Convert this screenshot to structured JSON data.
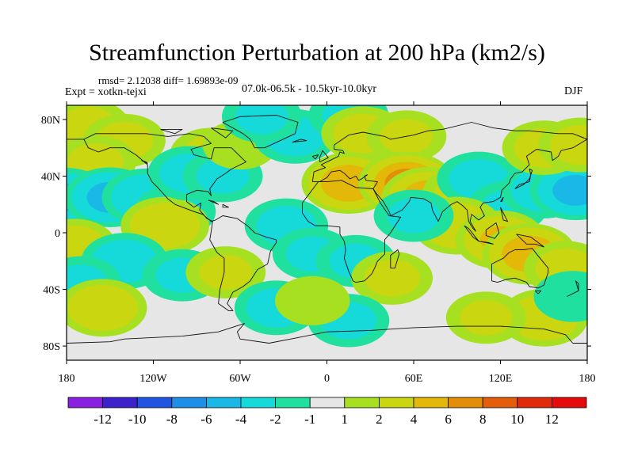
{
  "header": {
    "title": "Streamfunction Perturbation at 200 hPa (km2/s)",
    "stats": "rmsd= 2.12038 diff= 1.69893e-09",
    "expt": "Expt = xotkn-tejxi",
    "period": "07.0k-06.5k - 10.5kyr-10.0kyr",
    "season": "DJF"
  },
  "chart_data": {
    "type": "heatmap",
    "title": "Streamfunction Perturbation at 200 hPa (km2/s)",
    "units": "km2/s",
    "projection": "cylindrical equidistant",
    "xlim": [
      -180,
      180
    ],
    "ylim": [
      -90,
      90
    ],
    "x_ticks": [
      {
        "value": -180,
        "label": "180"
      },
      {
        "value": -120,
        "label": "120W"
      },
      {
        "value": -60,
        "label": "60W"
      },
      {
        "value": 0,
        "label": "0"
      },
      {
        "value": 60,
        "label": "60E"
      },
      {
        "value": 120,
        "label": "120E"
      },
      {
        "value": 180,
        "label": "180"
      }
    ],
    "y_ticks": [
      {
        "value": 80,
        "label": "80N"
      },
      {
        "value": 40,
        "label": "40N"
      },
      {
        "value": 0,
        "label": "0"
      },
      {
        "value": -40,
        "label": "40S"
      },
      {
        "value": -80,
        "label": "80S"
      }
    ],
    "colorbar": {
      "labels": [
        "-12",
        "-10",
        "-8",
        "-6",
        "-4",
        "-2",
        "-1",
        "1",
        "2",
        "4",
        "6",
        "8",
        "10",
        "12"
      ],
      "colors": [
        "#8a1fe0",
        "#3d22cc",
        "#1f55e0",
        "#1f8ee6",
        "#19b8e6",
        "#16d9d9",
        "#20e0a0",
        "#e6e6e6",
        "#a6e020",
        "#c9d610",
        "#e3b808",
        "#e38e08",
        "#e35d0a",
        "#e02a0a",
        "#e60a0a"
      ]
    },
    "field": [
      {
        "lon": -165,
        "lat": 75,
        "value": 2.5
      },
      {
        "lon": -140,
        "lat": 65,
        "value": 2.3
      },
      {
        "lon": -160,
        "lat": 50,
        "value": 2.2
      },
      {
        "lon": -180,
        "lat": 25,
        "value": -4
      },
      {
        "lon": -150,
        "lat": 25,
        "value": -4.5
      },
      {
        "lon": -125,
        "lat": 25,
        "value": -3.5
      },
      {
        "lon": -105,
        "lat": 15,
        "value": -2.2
      },
      {
        "lon": -80,
        "lat": 55,
        "value": 2.4
      },
      {
        "lon": -112,
        "lat": 5,
        "value": 3.5
      },
      {
        "lon": -95,
        "lat": 42,
        "value": -2.5
      },
      {
        "lon": -72,
        "lat": 40,
        "value": -2
      },
      {
        "lon": -60,
        "lat": 62,
        "value": 1.5
      },
      {
        "lon": -22,
        "lat": 68,
        "value": -2.5
      },
      {
        "lon": -45,
        "lat": 82,
        "value": -2
      },
      {
        "lon": 15,
        "lat": 83,
        "value": -2
      },
      {
        "lon": 25,
        "lat": 70,
        "value": 2.5
      },
      {
        "lon": 55,
        "lat": 68,
        "value": 2
      },
      {
        "lon": 15,
        "lat": 35,
        "value": 5.5
      },
      {
        "lon": 55,
        "lat": 35,
        "value": 7
      },
      {
        "lon": 70,
        "lat": 25,
        "value": 5
      },
      {
        "lon": 95,
        "lat": 28,
        "value": 2.5
      },
      {
        "lon": 105,
        "lat": 38,
        "value": -2.5
      },
      {
        "lon": 125,
        "lat": 18,
        "value": -2
      },
      {
        "lon": 150,
        "lat": 30,
        "value": -3
      },
      {
        "lon": 172,
        "lat": 30,
        "value": -4.5
      },
      {
        "lon": 150,
        "lat": 60,
        "value": 2.5
      },
      {
        "lon": 175,
        "lat": 62,
        "value": 2.5
      },
      {
        "lon": 90,
        "lat": 5,
        "value": 3.5
      },
      {
        "lon": 120,
        "lat": -5,
        "value": 4
      },
      {
        "lon": 140,
        "lat": -15,
        "value": 5.5
      },
      {
        "lon": 165,
        "lat": -25,
        "value": 2.5
      },
      {
        "lon": -175,
        "lat": -10,
        "value": 3
      },
      {
        "lon": -140,
        "lat": -20,
        "value": -3
      },
      {
        "lon": -100,
        "lat": -30,
        "value": -2
      },
      {
        "lon": -170,
        "lat": -35,
        "value": -2
      },
      {
        "lon": -155,
        "lat": -53,
        "value": 3.5
      },
      {
        "lon": -70,
        "lat": -28,
        "value": 2
      },
      {
        "lon": -28,
        "lat": 5,
        "value": -2.5
      },
      {
        "lon": -10,
        "lat": -15,
        "value": -2
      },
      {
        "lon": 20,
        "lat": -20,
        "value": -2
      },
      {
        "lon": 45,
        "lat": -32,
        "value": 2.2
      },
      {
        "lon": 60,
        "lat": 12,
        "value": -2
      },
      {
        "lon": -35,
        "lat": -53,
        "value": -2.5
      },
      {
        "lon": 15,
        "lat": -62,
        "value": -2.2
      },
      {
        "lon": -10,
        "lat": -48,
        "value": 1.5
      },
      {
        "lon": 150,
        "lat": -60,
        "value": 3.5
      },
      {
        "lon": 110,
        "lat": -60,
        "value": 2
      },
      {
        "lon": 170,
        "lat": -45,
        "value": -1.8
      }
    ]
  }
}
